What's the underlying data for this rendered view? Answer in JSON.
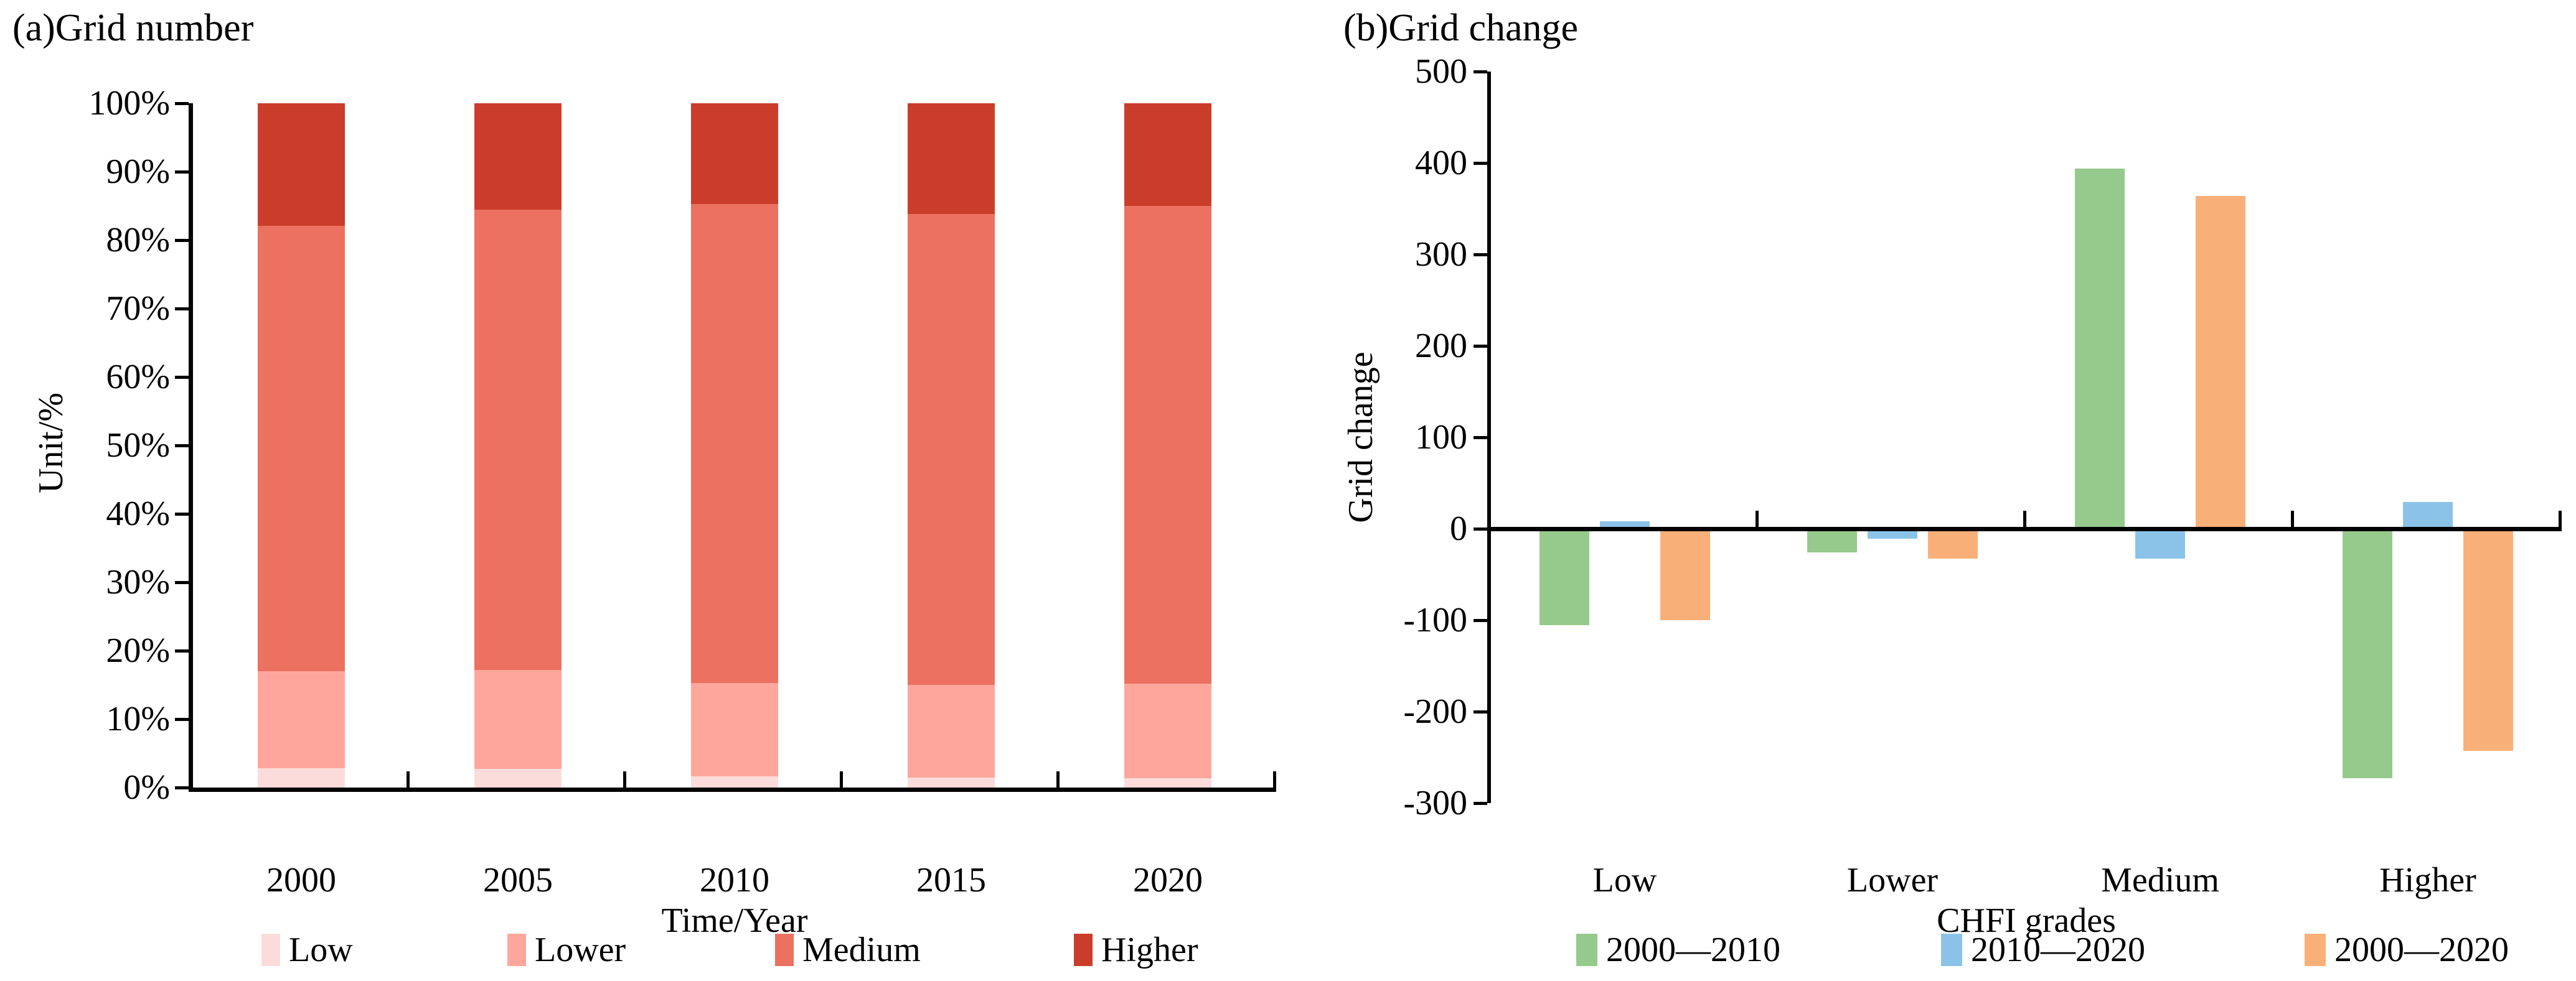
{
  "chart_data": [
    {
      "id": "a",
      "type": "bar",
      "subtype": "stacked-percent",
      "title": "(a)Grid number",
      "xlabel": "Time/Year",
      "ylabel": "Unit/%",
      "categories": [
        "2000",
        "2005",
        "2010",
        "2015",
        "2020"
      ],
      "series": [
        {
          "name": "Low",
          "color": "#fcdcdb",
          "values": [
            2.8,
            2.7,
            1.6,
            1.5,
            1.4
          ]
        },
        {
          "name": "Lower",
          "color": "#ffa69c",
          "values": [
            14.2,
            14.5,
            13.7,
            13.5,
            13.8
          ]
        },
        {
          "name": "Medium",
          "color": "#ec7160",
          "values": [
            65.1,
            67.3,
            70.0,
            68.8,
            69.8
          ]
        },
        {
          "name": "Higher",
          "color": "#cb3d2b",
          "values": [
            17.9,
            15.5,
            14.7,
            16.2,
            15.0
          ]
        }
      ],
      "y_ticks": [
        "100%",
        "90%",
        "80%",
        "70%",
        "60%",
        "50%",
        "40%",
        "30%",
        "20%",
        "10%",
        "0%"
      ],
      "ylim": [
        0,
        100
      ],
      "grid": false,
      "legend_position": "bottom"
    },
    {
      "id": "b",
      "type": "bar",
      "subtype": "grouped",
      "title": "(b)Grid change",
      "xlabel": "CHFI grades",
      "ylabel": "Grid change",
      "categories": [
        "Low",
        "Lower",
        "Medium",
        "Higher"
      ],
      "series": [
        {
          "name": "2000—2010",
          "color": "#95ca8c",
          "values": [
            -103,
            -23,
            392,
            -270
          ]
        },
        {
          "name": "2010—2020",
          "color": "#8bc3e8",
          "values": [
            6,
            -8,
            -30,
            27
          ]
        },
        {
          "name": "2000—2020",
          "color": "#f9b078",
          "values": [
            -97,
            -30,
            362,
            -240
          ]
        }
      ],
      "y_ticks": [
        "500",
        "400",
        "300",
        "200",
        "100",
        "0",
        "-100",
        "-200",
        "-300"
      ],
      "ylim": [
        -300,
        500
      ],
      "grid": false,
      "legend_position": "bottom"
    }
  ]
}
